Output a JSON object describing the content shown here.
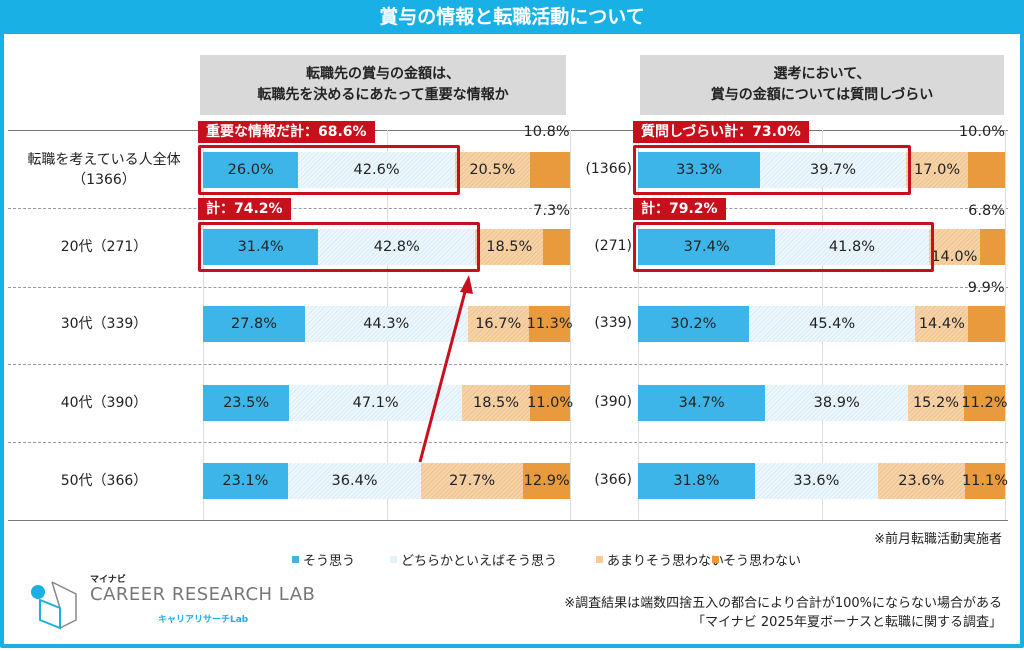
{
  "title": "賞与の情報と転職活動について",
  "chart_data": [
    {
      "type": "bar",
      "orientation": "horizontal-stacked-100",
      "title": "転職先の賞与の金額は、\n転職先を決めるにあたって重要な情報か",
      "categories": [
        "転職を考えている人全体\n（1366）",
        "20代（271）",
        "30代（339）",
        "40代（390）",
        "50代（366）"
      ],
      "sample_labels": [
        "(1366)",
        "(271)",
        "(339)",
        "(390)",
        "(366)"
      ],
      "series": [
        {
          "name": "そう思う",
          "values": [
            26.0,
            31.4,
            27.8,
            23.5,
            23.1
          ]
        },
        {
          "name": "どちらかといえばそう思う",
          "values": [
            42.6,
            42.8,
            44.3,
            47.1,
            36.4
          ]
        },
        {
          "name": "あまりそう思わない",
          "values": [
            20.5,
            18.5,
            16.7,
            18.5,
            27.7
          ]
        },
        {
          "name": "そう思わない",
          "values": [
            10.8,
            7.3,
            11.3,
            11.0,
            12.9
          ]
        }
      ],
      "highlights": [
        {
          "row": 0,
          "label": "重要な情報だ計：68.6%"
        },
        {
          "row": 1,
          "label": "計：74.2%"
        }
      ],
      "xlim": [
        0,
        100
      ]
    },
    {
      "type": "bar",
      "orientation": "horizontal-stacked-100",
      "title": "選考において、\n賞与の金額については質問しづらい",
      "series": [
        {
          "name": "そう思う",
          "values": [
            33.3,
            37.4,
            30.2,
            34.7,
            31.8
          ]
        },
        {
          "name": "どちらかといえばそう思う",
          "values": [
            39.7,
            41.8,
            45.4,
            38.9,
            33.6
          ]
        },
        {
          "name": "あまりそう思わない",
          "values": [
            17.0,
            14.0,
            14.4,
            15.2,
            23.6
          ]
        },
        {
          "name": "そう思わない",
          "values": [
            10.0,
            6.8,
            9.9,
            11.2,
            11.1
          ]
        }
      ],
      "highlights": [
        {
          "row": 0,
          "label": "質問しづらい計：73.0%"
        },
        {
          "row": 1,
          "label": "計：79.2%"
        }
      ],
      "xlim": [
        0,
        100
      ]
    }
  ],
  "colors": {
    "series": [
      "#3eb5e8",
      "#e3f1fa",
      "#f3cc9c",
      "#e89a3c"
    ],
    "highlight": "#c8101c",
    "title_bar": "#19b0e6"
  },
  "notes": {
    "respondents": "※前月転職活動実施者",
    "rounding": "※調査結果は端数四捨五入の都合により合計が100%にならない場合がある",
    "source": "「マイナビ 2025年夏ボーナスと転職に関する調査」"
  },
  "logo": {
    "brand": "マイナビ",
    "name": "CAREER RESEARCH LAB",
    "sub": "キャリアリサーチLab"
  }
}
